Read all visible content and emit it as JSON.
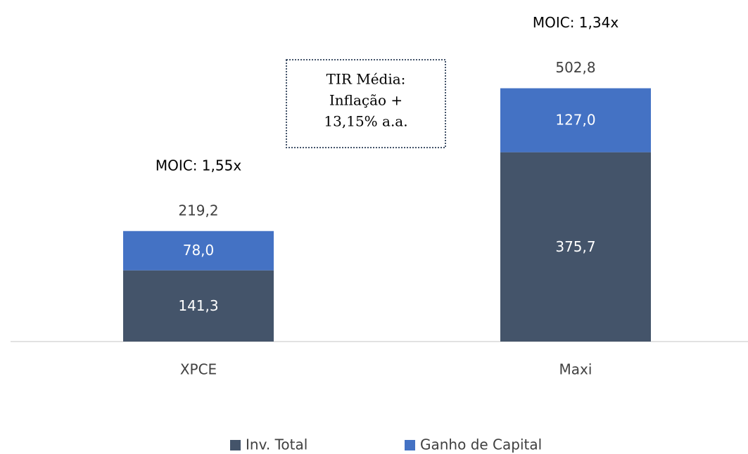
{
  "chart_data": {
    "type": "stacked_bar",
    "categories": [
      "XPCE",
      "Maxi"
    ],
    "series": [
      {
        "name": "Inv. Total",
        "color": "#44546a",
        "values": [
          141.3,
          375.7
        ],
        "value_labels": [
          "141,3",
          "375,7"
        ]
      },
      {
        "name": "Ganho de Capital",
        "color": "#4472c4",
        "values": [
          78.0,
          127.0
        ],
        "value_labels": [
          "78,0",
          "127,0"
        ]
      }
    ],
    "totals": [
      219.2,
      502.8
    ],
    "total_labels": [
      "219,2",
      "502,8"
    ],
    "annotations": [
      "MOIC: 1,55x",
      "MOIC: 1,34x"
    ],
    "note": [
      "TIR Média:",
      "Inflação +",
      "13,15% a.a."
    ],
    "legend": "bottom"
  }
}
